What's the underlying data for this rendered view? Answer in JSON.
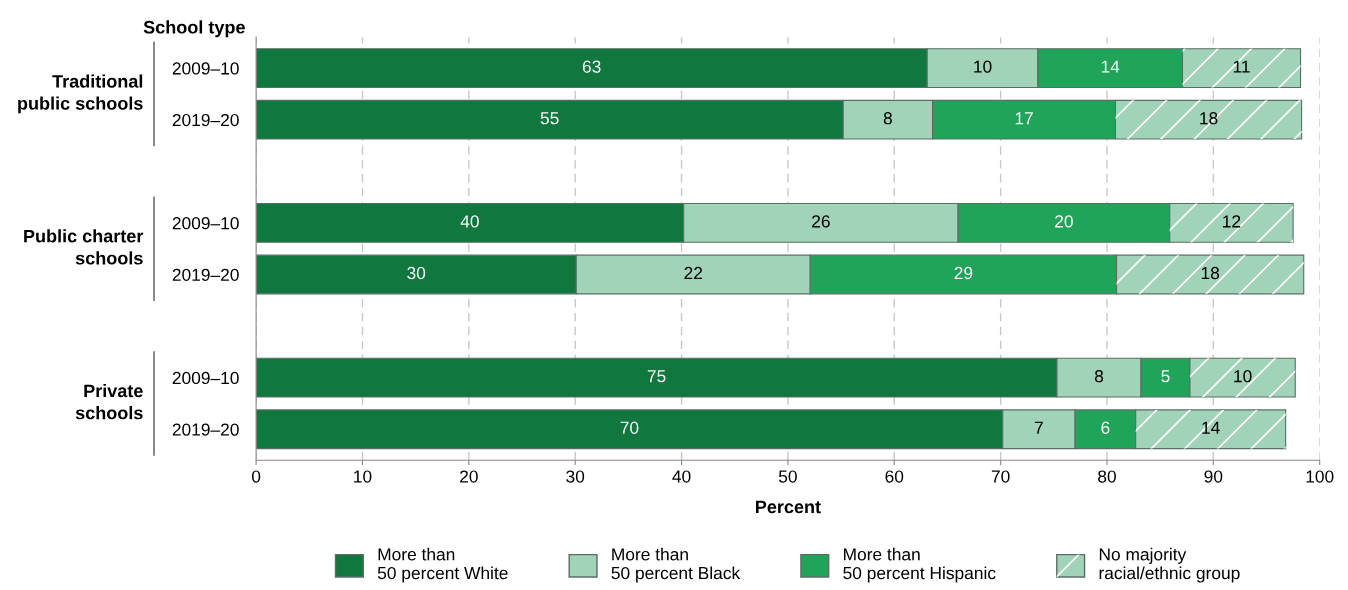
{
  "chart_data": {
    "type": "bar",
    "orientation": "horizontal",
    "stacked": true,
    "categories": [
      "2009–10",
      "2019–20",
      null,
      "2009–10",
      "2019–20",
      null,
      "2009–10",
      "2019–20"
    ],
    "series": [
      {
        "name": "More than\n50 percent White",
        "color": "#10773f",
        "values": [
          63.1,
          55.2,
          null,
          40.2,
          30.1,
          null,
          75.3,
          70.2
        ],
        "value_labels": [
          "63",
          "55",
          null,
          "40",
          "30",
          null,
          "75",
          "70"
        ]
      },
      {
        "name": "More than\n50 percent Black",
        "color": "#a1d3b8",
        "values": [
          10.4,
          8.4,
          null,
          25.8,
          22.0,
          null,
          7.9,
          6.8
        ],
        "value_labels": [
          "10",
          "8",
          null,
          "26",
          "22",
          null,
          "8",
          "7"
        ]
      },
      {
        "name": "More than\n50 percent Hispanic",
        "color": "#20a459",
        "values": [
          13.6,
          17.2,
          null,
          19.9,
          28.8,
          null,
          4.6,
          5.7
        ],
        "value_labels": [
          "14",
          "17",
          null,
          "20",
          "29",
          null,
          "5",
          "6"
        ]
      },
      {
        "name": "No majority\nracial/ethnic group",
        "color": "#a1d3b8",
        "values": [
          11.1,
          17.5,
          null,
          11.6,
          17.6,
          null,
          9.9,
          14.1
        ],
        "value_labels": [
          "11",
          "18",
          null,
          "12",
          "18",
          null,
          "10",
          "14"
        ]
      }
    ],
    "xlabel": "Percent",
    "xlim": [
      0,
      100
    ],
    "xticks": [
      0,
      10,
      20,
      30,
      40,
      50,
      60,
      70,
      80,
      90,
      100
    ],
    "grid": "x",
    "legend": "bottom",
    "annotations": [
      "School type",
      "Traditional\npublic schools",
      "Public charter\nschools",
      "Private\nschools"
    ]
  }
}
